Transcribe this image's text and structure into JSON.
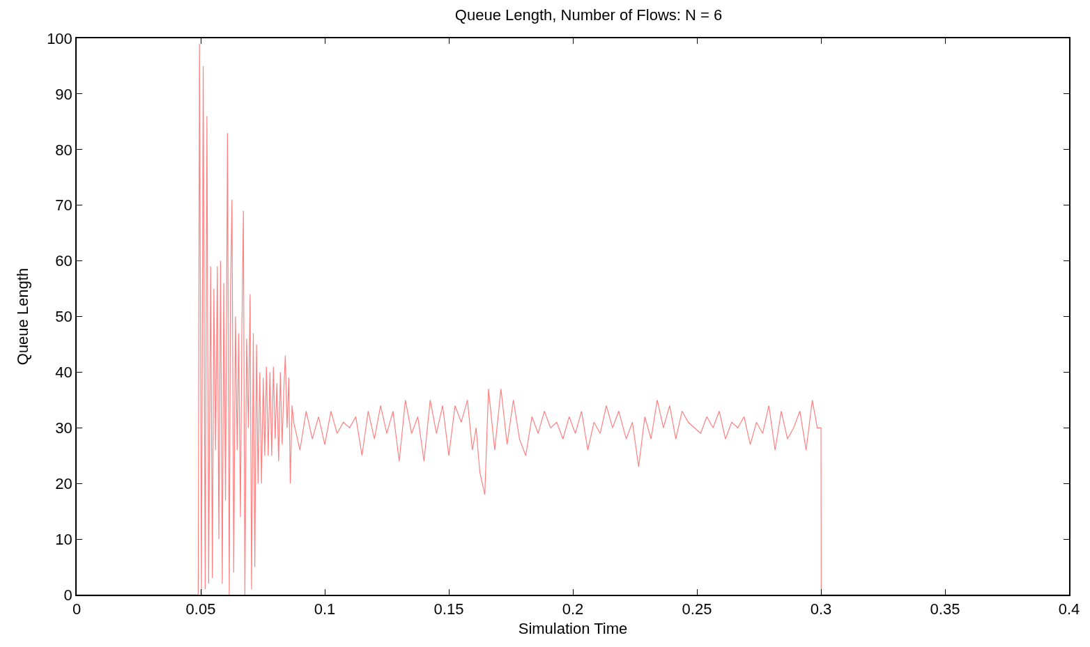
{
  "chart_data": {
    "type": "line",
    "title": "Queue Length, Number of Flows: N = 6",
    "xlabel": "Simulation Time",
    "ylabel": "Queue Length",
    "xlim": [
      0,
      0.4
    ],
    "ylim": [
      0,
      100
    ],
    "xticks": [
      0,
      0.05,
      0.1,
      0.15,
      0.2,
      0.25,
      0.3,
      0.35,
      0.4
    ],
    "yticks": [
      0,
      10,
      20,
      30,
      40,
      50,
      60,
      70,
      80,
      90,
      100
    ],
    "series": [
      {
        "color": "#ff8080",
        "x": [
          0,
          0.049,
          0.0495,
          0.0503,
          0.051,
          0.0518,
          0.0525,
          0.0532,
          0.054,
          0.0547,
          0.0553,
          0.056,
          0.0567,
          0.0573,
          0.058,
          0.0587,
          0.0593,
          0.06,
          0.0608,
          0.0615,
          0.062,
          0.0626,
          0.0633,
          0.064,
          0.0647,
          0.0653,
          0.066,
          0.0666,
          0.0672,
          0.0678,
          0.0685,
          0.0692,
          0.0699,
          0.0705,
          0.0712,
          0.0718,
          0.0725,
          0.0731,
          0.0738,
          0.0745,
          0.0752,
          0.0758,
          0.0765,
          0.0772,
          0.0779,
          0.0786,
          0.0793,
          0.08,
          0.0807,
          0.0814,
          0.0821,
          0.0828,
          0.0835,
          0.0841,
          0.0848,
          0.0855,
          0.0861,
          0.0868,
          0.0875,
          0.09,
          0.0925,
          0.095,
          0.0975,
          0.1,
          0.1025,
          0.105,
          0.1075,
          0.11,
          0.1125,
          0.115,
          0.1175,
          0.12,
          0.1225,
          0.125,
          0.1275,
          0.13,
          0.1325,
          0.135,
          0.1375,
          0.14,
          0.1425,
          0.145,
          0.1475,
          0.15,
          0.1525,
          0.155,
          0.1575,
          0.1595,
          0.161,
          0.1625,
          0.1645,
          0.166,
          0.1685,
          0.171,
          0.1735,
          0.176,
          0.1785,
          0.181,
          0.1835,
          0.186,
          0.1885,
          0.191,
          0.1935,
          0.196,
          0.1985,
          0.201,
          0.2035,
          0.206,
          0.2085,
          0.211,
          0.2135,
          0.216,
          0.2185,
          0.2215,
          0.224,
          0.2265,
          0.229,
          0.2315,
          0.234,
          0.2365,
          0.239,
          0.2415,
          0.244,
          0.2465,
          0.249,
          0.2515,
          0.254,
          0.2565,
          0.259,
          0.2615,
          0.264,
          0.2665,
          0.269,
          0.2715,
          0.274,
          0.2765,
          0.279,
          0.2815,
          0.284,
          0.2865,
          0.289,
          0.2915,
          0.294,
          0.2965,
          0.2985,
          0.3,
          0.3001,
          0.4
        ],
        "values": [
          0,
          0,
          99,
          0,
          95,
          1,
          86,
          2,
          59,
          3,
          55,
          26,
          59,
          10,
          60,
          2,
          56,
          17,
          83,
          0,
          54,
          71,
          4,
          50,
          26,
          47,
          14,
          48,
          69,
          0,
          46,
          30,
          54,
          1,
          47,
          5,
          45,
          20,
          40,
          20,
          39,
          25,
          41,
          25,
          40,
          25,
          41,
          28,
          38,
          24,
          40,
          27,
          37,
          43,
          30,
          39,
          20,
          34,
          31,
          26,
          33,
          28,
          32,
          27,
          33,
          29,
          31,
          30,
          32,
          25,
          33,
          28,
          34,
          29,
          33,
          24,
          35,
          29,
          32,
          24,
          35,
          29,
          34,
          25,
          34,
          31,
          35,
          26,
          30,
          22,
          18,
          37,
          26,
          37,
          27,
          35,
          28,
          25,
          32,
          29,
          33,
          30,
          31,
          28,
          32,
          29,
          33,
          26,
          31,
          29,
          34,
          30,
          33,
          28,
          31,
          23,
          32,
          28,
          35,
          30,
          34,
          28,
          33,
          31,
          30,
          29,
          32,
          30,
          33,
          28,
          31,
          30,
          32,
          27,
          31,
          29,
          34,
          26,
          33,
          28,
          30,
          33,
          26,
          35,
          30,
          30,
          0,
          0
        ]
      }
    ]
  }
}
